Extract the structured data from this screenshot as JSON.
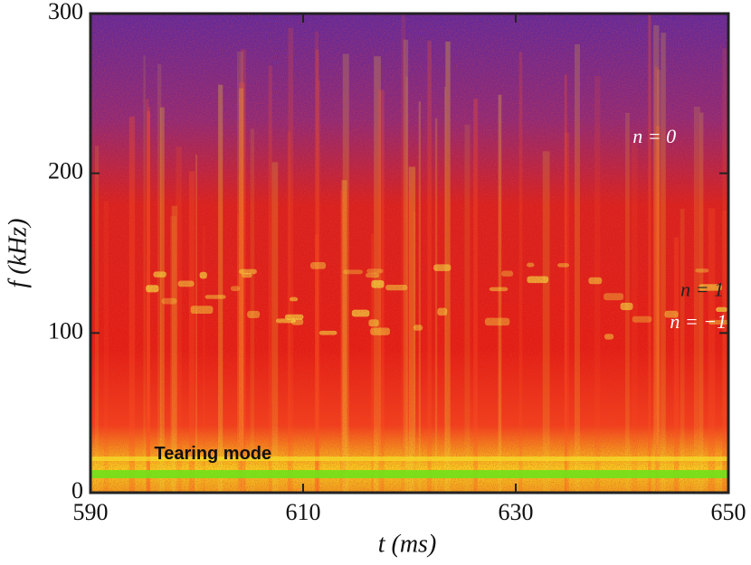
{
  "chart_data": {
    "type": "spectrogram",
    "x_label": "t (ms)",
    "y_label": "f (kHz)",
    "xlim": [
      590,
      650
    ],
    "xticks": [
      590,
      610,
      630,
      650
    ],
    "ylim": [
      0,
      300
    ],
    "yticks": [
      0,
      100,
      200,
      300
    ],
    "annotations": [
      {
        "text": "n = 0",
        "x": 641,
        "y": 222,
        "color": "#ffffff",
        "italic": true
      },
      {
        "text": "n = 1",
        "x": 645.5,
        "y": 126,
        "color": "#222222",
        "italic": true
      },
      {
        "text": "n = −1",
        "x": 644.5,
        "y": 106,
        "color": "#ffffff",
        "italic": true
      },
      {
        "text": "Tearing mode",
        "x": 596,
        "y": 24,
        "color": "#111111",
        "italic": false
      }
    ]
  }
}
